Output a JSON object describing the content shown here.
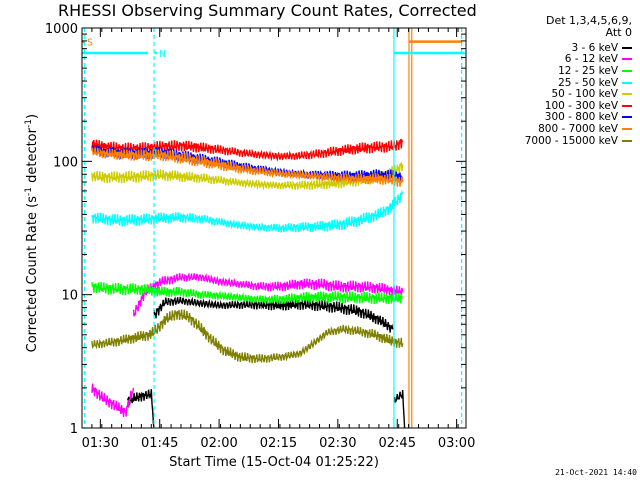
{
  "title": "RHESSI Observing Summary Count Rates, Corrected",
  "legend_header": {
    "line1": "Det 1,3,4,5,6,9,",
    "line2": "Att 0"
  },
  "timestamp": "21-Oct-2021 14:40",
  "chart_data": {
    "type": "line",
    "title": "RHESSI Observing Summary Count Rates, Corrected",
    "xlabel": "Start Time (15-Oct-04 01:25:22)",
    "ylabel": "Corrected Count Rate (s",
    "ylabel_sup": "-1",
    "ylabel_mid": " detector",
    "ylabel_end": ")",
    "yscale": "log",
    "ylim": [
      1,
      1000
    ],
    "xlim": [
      "01:25:22",
      "03:02"
    ],
    "y_ticks": [
      {
        "value": 1,
        "label": "1"
      },
      {
        "value": 10,
        "label": "10"
      },
      {
        "value": 100,
        "label": "100"
      },
      {
        "value": 1000,
        "label": "1000"
      }
    ],
    "x_ticks": [
      {
        "minutes": 4.63,
        "label": "01:30"
      },
      {
        "minutes": 19.63,
        "label": "01:45"
      },
      {
        "minutes": 34.63,
        "label": "02:00"
      },
      {
        "minutes": 49.63,
        "label": "02:15"
      },
      {
        "minutes": 64.63,
        "label": "02:30"
      },
      {
        "minutes": 79.63,
        "label": "02:45"
      },
      {
        "minutes": 94.63,
        "label": "03:00"
      }
    ],
    "flag_markers": [
      {
        "label": "S",
        "color": "#ff8000",
        "x_start_min": 0.0,
        "x_end_min": 0.6,
        "y": 790
      },
      {
        "label": "N",
        "color": "#00ffff",
        "x_start_min": 18.3,
        "x_end_min": 18.9,
        "y": 650
      }
    ],
    "flag_bars": [
      {
        "color": "#00ffff",
        "x_start_min": 0.0,
        "x_end_min": 16.7,
        "y": 650
      },
      {
        "color": "#00ffff",
        "x_start_min": 78.8,
        "x_end_min": 96.7,
        "y": 650
      },
      {
        "color": "#ff8000",
        "x_start_min": 82.6,
        "x_end_min": 96.0,
        "y": 790
      }
    ],
    "vlines": [
      {
        "color": "#00ffff",
        "style": "dashed",
        "minutes": 0.6
      },
      {
        "color": "#00ffff",
        "style": "dashed",
        "minutes": 18.2
      },
      {
        "color": "#00ffff",
        "style": "solid",
        "minutes": 78.8
      },
      {
        "color": "#ff8000",
        "style": "solid",
        "minutes": 82.6
      },
      {
        "color": "#ff8000",
        "style": "solid",
        "minutes": 83.3
      },
      {
        "color": "#00ffff",
        "style": "dashed",
        "minutes": 95.9
      }
    ],
    "series": [
      {
        "name": "3 - 6 keV",
        "color": "#000000",
        "segments": [
          [
            [
              11.5,
              1.6
            ],
            [
              14.0,
              1.7
            ],
            [
              17.5,
              1.8
            ],
            [
              18.2,
              1.0
            ]
          ],
          [
            [
              18.2,
              7.0
            ],
            [
              21,
              8.8
            ],
            [
              25,
              9.0
            ],
            [
              30,
              8.6
            ],
            [
              35,
              8.3
            ],
            [
              40,
              8.4
            ],
            [
              45,
              8.4
            ],
            [
              50,
              8.3
            ],
            [
              55,
              8.5
            ],
            [
              60,
              8.3
            ],
            [
              65,
              8.0
            ],
            [
              70,
              7.5
            ],
            [
              75,
              6.5
            ],
            [
              78.5,
              5.5
            ]
          ],
          [
            [
              78.8,
              1.6
            ],
            [
              81,
              1.8
            ],
            [
              81.5,
              1.0
            ]
          ]
        ]
      },
      {
        "name": "6 - 12 keV",
        "color": "#ff00ff",
        "segments": [
          [
            [
              2.5,
              2.0
            ],
            [
              5,
              1.7
            ],
            [
              8,
              1.5
            ],
            [
              11,
              1.3
            ],
            [
              13,
              2.0
            ]
          ],
          [
            [
              13,
              7.0
            ],
            [
              16,
              10.5
            ],
            [
              20,
              12.5
            ],
            [
              25,
              13.5
            ],
            [
              30,
              13.5
            ],
            [
              35,
              12.5
            ],
            [
              40,
              12.0
            ],
            [
              45,
              11.5
            ],
            [
              50,
              11.5
            ],
            [
              55,
              12.0
            ],
            [
              60,
              12.0
            ],
            [
              65,
              11.5
            ],
            [
              70,
              11.5
            ],
            [
              75,
              11.2
            ],
            [
              79,
              10.7
            ],
            [
              81,
              10.5
            ]
          ]
        ]
      },
      {
        "name": "12 - 25 keV",
        "color": "#00ff00",
        "segments": [
          [
            [
              2.5,
              11.5
            ],
            [
              5,
              11.2
            ],
            [
              10,
              11.0
            ],
            [
              15,
              11.0
            ],
            [
              20,
              10.5
            ],
            [
              25,
              10.5
            ],
            [
              30,
              10.0
            ],
            [
              35,
              9.8
            ],
            [
              40,
              9.5
            ],
            [
              45,
              9.2
            ],
            [
              50,
              9.2
            ],
            [
              55,
              9.5
            ],
            [
              60,
              9.6
            ],
            [
              65,
              9.6
            ],
            [
              70,
              9.5
            ],
            [
              75,
              9.4
            ],
            [
              81,
              9.4
            ]
          ]
        ]
      },
      {
        "name": "25 - 50 keV",
        "color": "#00ffff",
        "segments": [
          [
            [
              2.5,
              38
            ],
            [
              5,
              37
            ],
            [
              10,
              36
            ],
            [
              15,
              36.5
            ],
            [
              20,
              37.5
            ],
            [
              25,
              38
            ],
            [
              30,
              37
            ],
            [
              35,
              35
            ],
            [
              40,
              33
            ],
            [
              45,
              32
            ],
            [
              50,
              31.5
            ],
            [
              55,
              32
            ],
            [
              60,
              32.5
            ],
            [
              65,
              33.5
            ],
            [
              70,
              36
            ],
            [
              75,
              40
            ],
            [
              78,
              45
            ],
            [
              80,
              52
            ],
            [
              81,
              57
            ]
          ]
        ]
      },
      {
        "name": "50 - 100 keV",
        "color": "#cccc00",
        "segments": [
          [
            [
              2.5,
              78
            ],
            [
              5,
              76
            ],
            [
              10,
              76
            ],
            [
              15,
              77
            ],
            [
              20,
              79
            ],
            [
              25,
              77
            ],
            [
              30,
              75
            ],
            [
              35,
              72
            ],
            [
              40,
              69
            ],
            [
              45,
              67
            ],
            [
              50,
              66
            ],
            [
              55,
              66
            ],
            [
              60,
              67
            ],
            [
              65,
              69
            ],
            [
              70,
              72
            ],
            [
              75,
              76
            ],
            [
              78,
              82
            ],
            [
              80,
              88
            ],
            [
              81,
              95
            ]
          ]
        ]
      },
      {
        "name": "100 - 300 keV",
        "color": "#ff0000",
        "segments": [
          [
            [
              2.5,
              135
            ],
            [
              5,
              130
            ],
            [
              10,
              125
            ],
            [
              15,
              125
            ],
            [
              20,
              129
            ],
            [
              25,
              131
            ],
            [
              30,
              127
            ],
            [
              35,
              122
            ],
            [
              40,
              116
            ],
            [
              45,
              112
            ],
            [
              50,
              109
            ],
            [
              55,
              110
            ],
            [
              60,
              114
            ],
            [
              65,
              120
            ],
            [
              70,
              125
            ],
            [
              75,
              128
            ],
            [
              79,
              130
            ],
            [
              81,
              140
            ]
          ]
        ]
      },
      {
        "name": "300 - 800 keV",
        "color": "#0000ff",
        "segments": [
          [
            [
              2.5,
              123
            ],
            [
              5,
              118
            ],
            [
              10,
              115
            ],
            [
              15,
              114
            ],
            [
              20,
              116
            ],
            [
              25,
              110
            ],
            [
              30,
              104
            ],
            [
              35,
              98
            ],
            [
              40,
              92
            ],
            [
              45,
              87
            ],
            [
              50,
              83
            ],
            [
              55,
              80
            ],
            [
              60,
              79
            ],
            [
              65,
              78
            ],
            [
              70,
              78
            ],
            [
              75,
              79
            ],
            [
              79,
              78
            ],
            [
              81,
              76
            ]
          ]
        ]
      },
      {
        "name": "800 - 7000 keV",
        "color": "#ff8000",
        "segments": [
          [
            [
              2.5,
              118
            ],
            [
              5,
              115
            ],
            [
              10,
              112
            ],
            [
              15,
              111
            ],
            [
              20,
              112
            ],
            [
              25,
              106
            ],
            [
              30,
              100
            ],
            [
              35,
              94
            ],
            [
              40,
              88
            ],
            [
              45,
              84
            ],
            [
              50,
              81
            ],
            [
              55,
              79
            ],
            [
              60,
              77
            ],
            [
              65,
              75
            ],
            [
              70,
              74
            ],
            [
              75,
              74
            ],
            [
              79,
              72
            ],
            [
              81,
              70
            ]
          ]
        ]
      },
      {
        "name": "7000 - 15000 keV",
        "color": "#808000",
        "segments": [
          [
            [
              2.5,
              4.2
            ],
            [
              5,
              4.3
            ],
            [
              8,
              4.4
            ],
            [
              11,
              4.6
            ],
            [
              14,
              4.8
            ],
            [
              17,
              5.0
            ],
            [
              19,
              5.5
            ],
            [
              21,
              6.5
            ],
            [
              24,
              7.2
            ],
            [
              27,
              6.8
            ],
            [
              30,
              5.6
            ],
            [
              33,
              4.5
            ],
            [
              36,
              3.8
            ],
            [
              40,
              3.4
            ],
            [
              45,
              3.3
            ],
            [
              50,
              3.4
            ],
            [
              55,
              3.6
            ],
            [
              58,
              4.2
            ],
            [
              62,
              5.2
            ],
            [
              66,
              5.5
            ],
            [
              70,
              5.3
            ],
            [
              74,
              5.0
            ],
            [
              78,
              4.5
            ],
            [
              81,
              4.3
            ]
          ]
        ]
      }
    ]
  }
}
